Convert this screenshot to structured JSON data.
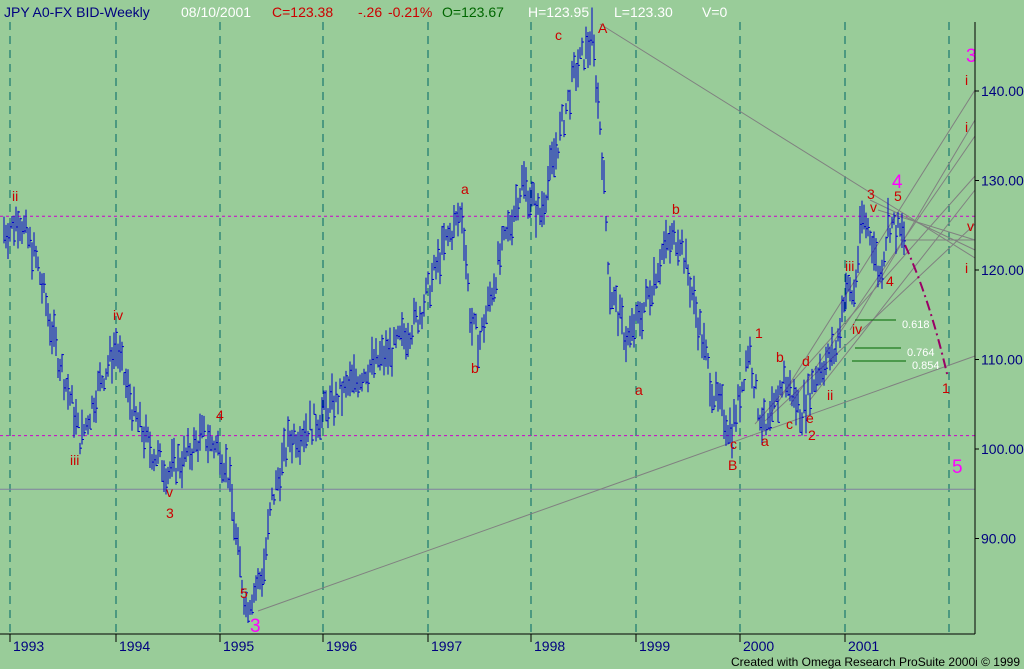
{
  "header": {
    "symbol": "JPY A0-FX BID-Weekly",
    "date": "08/10/2001",
    "close": "C=123.38",
    "change": "-.26",
    "pct": "-0.21%",
    "open": "O=123.67",
    "high": "H=123.95",
    "low": "L=123.30",
    "volume": "V=0"
  },
  "footer": {
    "credit": "Created with Omega Research ProSuite 2000i © 1999"
  },
  "colors": {
    "background": "#99cc99",
    "bars": "#0000cc",
    "wave_labels": "#cc0000",
    "major_labels": "#ff00ff",
    "grid_vertical": "#006666",
    "grid_horizontal_dashed": "#cc00cc",
    "trendlines": "#808080",
    "fib_lines": "#006600",
    "projection": "#990066"
  },
  "chart_data": {
    "type": "ohlc",
    "timeframe": "weekly",
    "x_axis": {
      "ticks": [
        "1993",
        "1994",
        "1995",
        "1996",
        "1997",
        "1998",
        "1999",
        "2000",
        "2001"
      ]
    },
    "y_axis": {
      "ticks": [
        90.0,
        100.0,
        110.0,
        120.0,
        130.0,
        140.0
      ],
      "range": [
        81.5,
        146.0
      ]
    },
    "price_path": [
      [
        "1993-01",
        124.5
      ],
      [
        "1993-02",
        126.0
      ],
      [
        "1993-04",
        121.0
      ],
      [
        "1993-06",
        112.0
      ],
      [
        "1993-08",
        105.0
      ],
      [
        "1993-09",
        101.0
      ],
      [
        "1993-11",
        107.0
      ],
      [
        "1994-01",
        111.5
      ],
      [
        "1994-03",
        104.0
      ],
      [
        "1994-05",
        100.0
      ],
      [
        "1994-07",
        97.5
      ],
      [
        "1994-09",
        99.0
      ],
      [
        "1994-11",
        101.5
      ],
      [
        "1995-01",
        100.0
      ],
      [
        "1995-02",
        97.0
      ],
      [
        "1995-03",
        89.0
      ],
      [
        "1995-04",
        82.5
      ],
      [
        "1995-06",
        86.0
      ],
      [
        "1995-07",
        94.0
      ],
      [
        "1995-09",
        101.0
      ],
      [
        "1995-12",
        103.0
      ],
      [
        "1996-03",
        106.0
      ],
      [
        "1996-06",
        109.0
      ],
      [
        "1996-09",
        111.0
      ],
      [
        "1996-12",
        115.0
      ],
      [
        "1997-03",
        123.0
      ],
      [
        "1997-05",
        126.5
      ],
      [
        "1997-06",
        114.0
      ],
      [
        "1997-07",
        112.0
      ],
      [
        "1997-09",
        120.0
      ],
      [
        "1997-12",
        130.0
      ],
      [
        "1998-02",
        126.0
      ],
      [
        "1998-04",
        134.0
      ],
      [
        "1998-06",
        142.0
      ],
      [
        "1998-08",
        146.0
      ],
      [
        "1998-09",
        135.0
      ],
      [
        "1998-10",
        118.0
      ],
      [
        "1998-12",
        112.0
      ],
      [
        "1999-02",
        116.0
      ],
      [
        "1999-04",
        122.0
      ],
      [
        "1999-06",
        124.0
      ],
      [
        "1999-08",
        115.0
      ],
      [
        "1999-10",
        106.0
      ],
      [
        "1999-12",
        102.0
      ],
      [
        "2000-01",
        106.0
      ],
      [
        "2000-02",
        111.5
      ],
      [
        "2000-03",
        105.0
      ],
      [
        "2000-04",
        101.5
      ],
      [
        "2000-06",
        108.0
      ],
      [
        "2000-08",
        104.0
      ],
      [
        "2000-10",
        109.0
      ],
      [
        "2000-12",
        111.0
      ],
      [
        "2001-01",
        118.0
      ],
      [
        "2001-02",
        117.0
      ],
      [
        "2001-03",
        126.0
      ],
      [
        "2001-04",
        124.0
      ],
      [
        "2001-05",
        119.0
      ],
      [
        "2001-06",
        125.5
      ],
      [
        "2001-08",
        123.38
      ]
    ],
    "horizontal_levels": [
      126.0,
      101.5
    ],
    "support_line": 95.5,
    "fibonacci_levels": [
      "0.618",
      "0.764",
      "0.854"
    ],
    "wave_labels": [
      "ii",
      "iii",
      "iv",
      "v",
      "3",
      "4",
      "5",
      "a",
      "b",
      "c",
      "A",
      "b",
      "a",
      "c",
      "B",
      "a",
      "1",
      "b",
      "d",
      "c",
      "e",
      "2",
      "ii",
      "iii",
      "iv",
      "v",
      "3",
      "4",
      "5",
      "4",
      "i",
      "i",
      "i",
      "v",
      "1",
      "5",
      "3"
    ],
    "wave_label_colors": [
      "#cc0000",
      "#ff00ff"
    ]
  }
}
